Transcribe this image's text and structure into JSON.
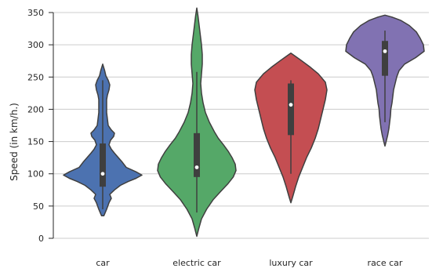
{
  "chart_data": {
    "type": "violin",
    "title": "",
    "xlabel": "",
    "ylabel": "Speed (in km/h.)",
    "ylim": [
      0,
      355
    ],
    "yticks": [
      0,
      50,
      100,
      150,
      200,
      250,
      300,
      350
    ],
    "grid": "horizontal",
    "legend": "none",
    "categories": [
      "car",
      "electric car",
      "luxury car",
      "race car"
    ],
    "colors": [
      "#4c72b0",
      "#55a868",
      "#c44e52",
      "#8172b2"
    ],
    "series": [
      {
        "min": 42,
        "max": 267,
        "q1": 80,
        "median": 100,
        "q3": 147,
        "whisker_low": 45,
        "whisker_high": 245,
        "density": [
          [
            35,
            0.03
          ],
          [
            45,
            0.1
          ],
          [
            55,
            0.16
          ],
          [
            62,
            0.22
          ],
          [
            68,
            0.18
          ],
          [
            75,
            0.3
          ],
          [
            82,
            0.45
          ],
          [
            88,
            0.65
          ],
          [
            93,
            0.85
          ],
          [
            98,
            1.0
          ],
          [
            103,
            0.85
          ],
          [
            110,
            0.6
          ],
          [
            118,
            0.5
          ],
          [
            125,
            0.4
          ],
          [
            132,
            0.3
          ],
          [
            138,
            0.22
          ],
          [
            145,
            0.16
          ],
          [
            152,
            0.2
          ],
          [
            158,
            0.28
          ],
          [
            163,
            0.3
          ],
          [
            168,
            0.22
          ],
          [
            175,
            0.14
          ],
          [
            185,
            0.12
          ],
          [
            195,
            0.1
          ],
          [
            205,
            0.1
          ],
          [
            215,
            0.1
          ],
          [
            222,
            0.12
          ],
          [
            230,
            0.16
          ],
          [
            238,
            0.18
          ],
          [
            245,
            0.14
          ],
          [
            252,
            0.08
          ],
          [
            260,
            0.05
          ],
          [
            270,
            0.0
          ]
        ]
      },
      {
        "min": 10,
        "max": 350,
        "q1": 95,
        "median": 110,
        "q3": 163,
        "whisker_low": 40,
        "whisker_high": 258,
        "density": [
          [
            3,
            0.0
          ],
          [
            15,
            0.05
          ],
          [
            30,
            0.12
          ],
          [
            45,
            0.25
          ],
          [
            60,
            0.42
          ],
          [
            72,
            0.6
          ],
          [
            85,
            0.8
          ],
          [
            95,
            0.93
          ],
          [
            105,
            1.0
          ],
          [
            115,
            0.98
          ],
          [
            125,
            0.9
          ],
          [
            135,
            0.8
          ],
          [
            145,
            0.68
          ],
          [
            155,
            0.55
          ],
          [
            165,
            0.45
          ],
          [
            180,
            0.32
          ],
          [
            195,
            0.22
          ],
          [
            210,
            0.16
          ],
          [
            225,
            0.12
          ],
          [
            240,
            0.1
          ],
          [
            255,
            0.12
          ],
          [
            270,
            0.14
          ],
          [
            285,
            0.14
          ],
          [
            300,
            0.12
          ],
          [
            315,
            0.09
          ],
          [
            330,
            0.06
          ],
          [
            345,
            0.03
          ],
          [
            357,
            0.0
          ]
        ]
      },
      {
        "min": 60,
        "max": 282,
        "q1": 160,
        "median": 207,
        "q3": 240,
        "whisker_low": 100,
        "whisker_high": 245,
        "density": [
          [
            55,
            0.0
          ],
          [
            65,
            0.05
          ],
          [
            80,
            0.12
          ],
          [
            95,
            0.2
          ],
          [
            110,
            0.3
          ],
          [
            125,
            0.4
          ],
          [
            140,
            0.52
          ],
          [
            155,
            0.62
          ],
          [
            170,
            0.7
          ],
          [
            185,
            0.76
          ],
          [
            200,
            0.82
          ],
          [
            215,
            0.88
          ],
          [
            230,
            0.92
          ],
          [
            242,
            0.88
          ],
          [
            255,
            0.7
          ],
          [
            265,
            0.5
          ],
          [
            275,
            0.28
          ],
          [
            282,
            0.12
          ],
          [
            287,
            0.0
          ]
        ]
      },
      {
        "min": 150,
        "max": 340,
        "q1": 252,
        "median": 290,
        "q3": 306,
        "whisker_low": 180,
        "whisker_high": 322,
        "density": [
          [
            143,
            0.0
          ],
          [
            150,
            0.03
          ],
          [
            160,
            0.07
          ],
          [
            170,
            0.1
          ],
          [
            180,
            0.12
          ],
          [
            190,
            0.14
          ],
          [
            200,
            0.15
          ],
          [
            210,
            0.18
          ],
          [
            220,
            0.2
          ],
          [
            230,
            0.22
          ],
          [
            240,
            0.26
          ],
          [
            250,
            0.3
          ],
          [
            260,
            0.36
          ],
          [
            270,
            0.5
          ],
          [
            280,
            0.78
          ],
          [
            290,
            1.0
          ],
          [
            300,
            0.98
          ],
          [
            310,
            0.9
          ],
          [
            320,
            0.8
          ],
          [
            330,
            0.62
          ],
          [
            338,
            0.4
          ],
          [
            343,
            0.18
          ],
          [
            346,
            0.0
          ]
        ]
      }
    ]
  }
}
